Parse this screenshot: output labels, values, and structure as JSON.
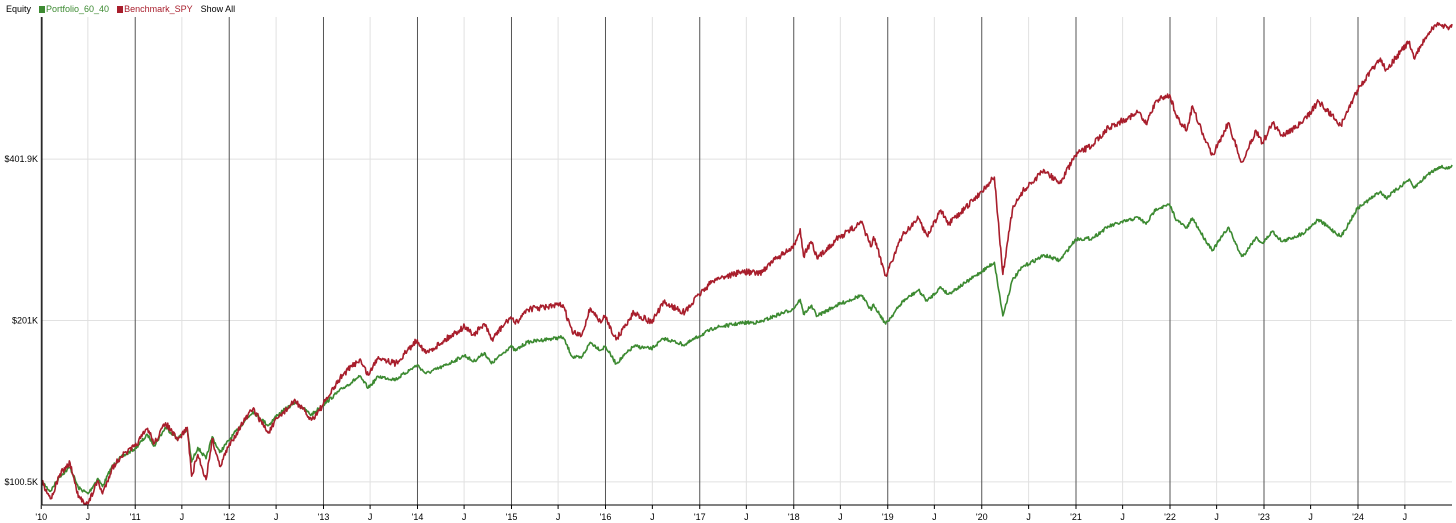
{
  "legend": {
    "title": "Equity",
    "show_all": "Show All"
  },
  "colors": {
    "portfolio": "#3c8a31",
    "benchmark": "#a81e2c",
    "year_grid": "#555555",
    "minor_grid": "#e1e1e1",
    "axis": "#000000"
  },
  "chart_data": {
    "type": "line",
    "title": "Equity",
    "xlabel": "",
    "ylabel": "",
    "scale": "log",
    "xlim": [
      "2010-01-04",
      "2024-12-31"
    ],
    "ylim": [
      91000,
      740000
    ],
    "grid": true,
    "legend_position": "top-left",
    "y_ticks": [
      {
        "value": 100500,
        "label": "$100.5K"
      },
      {
        "value": 201000,
        "label": "$201K"
      },
      {
        "value": 401900,
        "label": "$401.9K"
      }
    ],
    "x_ticks": [
      {
        "date": "2010-01-01",
        "label": "'10",
        "major": true
      },
      {
        "date": "2010-07-01",
        "label": "J",
        "major": false
      },
      {
        "date": "2011-01-01",
        "label": "'11",
        "major": true
      },
      {
        "date": "2011-07-01",
        "label": "J",
        "major": false
      },
      {
        "date": "2012-01-01",
        "label": "'12",
        "major": true
      },
      {
        "date": "2012-07-01",
        "label": "J",
        "major": false
      },
      {
        "date": "2013-01-01",
        "label": "'13",
        "major": true
      },
      {
        "date": "2013-07-01",
        "label": "J",
        "major": false
      },
      {
        "date": "2014-01-01",
        "label": "'14",
        "major": true
      },
      {
        "date": "2014-07-01",
        "label": "J",
        "major": false
      },
      {
        "date": "2015-01-01",
        "label": "'15",
        "major": true
      },
      {
        "date": "2015-07-01",
        "label": "J",
        "major": false
      },
      {
        "date": "2016-01-01",
        "label": "'16",
        "major": true
      },
      {
        "date": "2016-07-01",
        "label": "J",
        "major": false
      },
      {
        "date": "2017-01-01",
        "label": "'17",
        "major": true
      },
      {
        "date": "2017-07-01",
        "label": "J",
        "major": false
      },
      {
        "date": "2018-01-01",
        "label": "'18",
        "major": true
      },
      {
        "date": "2018-07-01",
        "label": "J",
        "major": false
      },
      {
        "date": "2019-01-01",
        "label": "'19",
        "major": true
      },
      {
        "date": "2019-07-01",
        "label": "J",
        "major": false
      },
      {
        "date": "2020-01-01",
        "label": "'20",
        "major": true
      },
      {
        "date": "2020-07-01",
        "label": "J",
        "major": false
      },
      {
        "date": "2021-01-01",
        "label": "'21",
        "major": true
      },
      {
        "date": "2021-07-01",
        "label": "J",
        "major": false
      },
      {
        "date": "2022-01-01",
        "label": "'22",
        "major": true
      },
      {
        "date": "2022-07-01",
        "label": "J",
        "major": false
      },
      {
        "date": "2023-01-01",
        "label": "'23",
        "major": true
      },
      {
        "date": "2023-07-01",
        "label": "J",
        "major": false
      },
      {
        "date": "2024-01-01",
        "label": "'24",
        "major": true
      },
      {
        "date": "2024-07-01",
        "label": "J",
        "major": false
      }
    ],
    "series": [
      {
        "name": "Portfolio_60_40",
        "color": "#3c8a31",
        "points": [
          [
            "2010-01-04",
            100500
          ],
          [
            "2010-02-05",
            96500
          ],
          [
            "2010-03-15",
            103000
          ],
          [
            "2010-04-23",
            107000
          ],
          [
            "2010-05-25",
            98000
          ],
          [
            "2010-07-02",
            95500
          ],
          [
            "2010-08-09",
            102000
          ],
          [
            "2010-08-27",
            98500
          ],
          [
            "2010-10-01",
            107000
          ],
          [
            "2010-11-05",
            111500
          ],
          [
            "2010-12-31",
            116000
          ],
          [
            "2011-02-18",
            123000
          ],
          [
            "2011-03-16",
            117500
          ],
          [
            "2011-04-29",
            127000
          ],
          [
            "2011-06-15",
            121000
          ],
          [
            "2011-07-22",
            126000
          ],
          [
            "2011-08-08",
            109500
          ],
          [
            "2011-09-01",
            116500
          ],
          [
            "2011-10-03",
            111000
          ],
          [
            "2011-10-27",
            122000
          ],
          [
            "2011-11-25",
            114000
          ],
          [
            "2011-12-30",
            120000
          ],
          [
            "2012-02-15",
            128000
          ],
          [
            "2012-04-02",
            136000
          ],
          [
            "2012-06-01",
            128000
          ],
          [
            "2012-07-06",
            134000
          ],
          [
            "2012-09-14",
            141500
          ],
          [
            "2012-11-15",
            134000
          ],
          [
            "2012-12-31",
            140000
          ],
          [
            "2013-03-15",
            150000
          ],
          [
            "2013-05-21",
            158000
          ],
          [
            "2013-06-24",
            150500
          ],
          [
            "2013-08-02",
            158000
          ],
          [
            "2013-10-08",
            156000
          ],
          [
            "2013-12-31",
            166000
          ],
          [
            "2014-02-03",
            160000
          ],
          [
            "2014-04-11",
            165000
          ],
          [
            "2014-07-03",
            173000
          ],
          [
            "2014-08-07",
            168500
          ],
          [
            "2014-09-18",
            175000
          ],
          [
            "2014-10-15",
            167000
          ],
          [
            "2014-12-29",
            180000
          ],
          [
            "2015-01-16",
            176500
          ],
          [
            "2015-03-02",
            183000
          ],
          [
            "2015-05-20",
            185500
          ],
          [
            "2015-07-20",
            187000
          ],
          [
            "2015-08-25",
            172000
          ],
          [
            "2015-09-29",
            171000
          ],
          [
            "2015-11-03",
            183000
          ],
          [
            "2015-12-14",
            177000
          ],
          [
            "2015-12-31",
            180000
          ],
          [
            "2016-02-11",
            167000
          ],
          [
            "2016-04-20",
            180000
          ],
          [
            "2016-06-27",
            178000
          ],
          [
            "2016-08-15",
            186000
          ],
          [
            "2016-11-04",
            181000
          ],
          [
            "2016-12-30",
            188000
          ],
          [
            "2017-03-01",
            195000
          ],
          [
            "2017-06-19",
            199000
          ],
          [
            "2017-08-21",
            199500
          ],
          [
            "2017-10-31",
            206000
          ],
          [
            "2017-12-29",
            211000
          ],
          [
            "2018-01-26",
            220000
          ],
          [
            "2018-02-08",
            206500
          ],
          [
            "2018-03-09",
            214000
          ],
          [
            "2018-04-02",
            205000
          ],
          [
            "2018-06-12",
            214000
          ],
          [
            "2018-09-20",
            224000
          ],
          [
            "2018-10-29",
            210000
          ],
          [
            "2018-11-07",
            215500
          ],
          [
            "2018-12-24",
            198000
          ],
          [
            "2019-02-28",
            218000
          ],
          [
            "2019-04-30",
            229000
          ],
          [
            "2019-06-03",
            218500
          ],
          [
            "2019-07-26",
            232000
          ],
          [
            "2019-08-23",
            225000
          ],
          [
            "2019-10-28",
            236000
          ],
          [
            "2019-12-31",
            248000
          ],
          [
            "2020-02-19",
            258000
          ],
          [
            "2020-03-23",
            205000
          ],
          [
            "2020-04-29",
            239000
          ],
          [
            "2020-06-08",
            253000
          ],
          [
            "2020-08-31",
            266000
          ],
          [
            "2020-10-30",
            260000
          ],
          [
            "2020-12-31",
            285000
          ],
          [
            "2021-03-04",
            286000
          ],
          [
            "2021-05-07",
            301000
          ],
          [
            "2021-08-31",
            313000
          ],
          [
            "2021-09-30",
            304000
          ],
          [
            "2021-11-08",
            325000
          ],
          [
            "2021-12-31",
            330000
          ],
          [
            "2022-01-27",
            309000
          ],
          [
            "2022-03-08",
            299000
          ],
          [
            "2022-03-29",
            312000
          ],
          [
            "2022-05-20",
            283000
          ],
          [
            "2022-06-16",
            272000
          ],
          [
            "2022-08-16",
            300000
          ],
          [
            "2022-09-30",
            268000
          ],
          [
            "2022-10-12",
            265000
          ],
          [
            "2022-11-30",
            287000
          ],
          [
            "2022-12-28",
            280000
          ],
          [
            "2023-02-02",
            295000
          ],
          [
            "2023-03-13",
            282000
          ],
          [
            "2023-05-31",
            292000
          ],
          [
            "2023-07-31",
            310000
          ],
          [
            "2023-10-27",
            288000
          ],
          [
            "2023-12-29",
            325000
          ],
          [
            "2024-03-28",
            350000
          ],
          [
            "2024-04-19",
            340000
          ],
          [
            "2024-07-16",
            368000
          ],
          [
            "2024-08-05",
            355000
          ],
          [
            "2024-09-30",
            377000
          ],
          [
            "2024-11-11",
            389000
          ],
          [
            "2024-12-20",
            386000
          ],
          [
            "2024-12-31",
            392000
          ]
        ]
      },
      {
        "name": "Benchmark_SPY",
        "color": "#a81e2c",
        "points": [
          [
            "2010-01-04",
            100500
          ],
          [
            "2010-02-08",
            93500
          ],
          [
            "2010-03-15",
            104000
          ],
          [
            "2010-04-23",
            109000
          ],
          [
            "2010-05-25",
            94000
          ],
          [
            "2010-07-02",
            91500
          ],
          [
            "2010-08-09",
            101000
          ],
          [
            "2010-08-27",
            95500
          ],
          [
            "2010-10-01",
            106000
          ],
          [
            "2010-11-05",
            112000
          ],
          [
            "2010-12-31",
            117000
          ],
          [
            "2011-02-18",
            126500
          ],
          [
            "2011-03-16",
            118500
          ],
          [
            "2011-04-29",
            129500
          ],
          [
            "2011-06-15",
            120000
          ],
          [
            "2011-07-22",
            127000
          ],
          [
            "2011-08-08",
            103000
          ],
          [
            "2011-09-01",
            113000
          ],
          [
            "2011-10-03",
            101500
          ],
          [
            "2011-10-27",
            121000
          ],
          [
            "2011-11-25",
            107500
          ],
          [
            "2011-12-30",
            117000
          ],
          [
            "2012-02-15",
            128000
          ],
          [
            "2012-04-02",
            137500
          ],
          [
            "2012-06-01",
            124000
          ],
          [
            "2012-07-06",
            132000
          ],
          [
            "2012-09-14",
            142500
          ],
          [
            "2012-11-15",
            131000
          ],
          [
            "2012-12-31",
            140000
          ],
          [
            "2013-03-15",
            159000
          ],
          [
            "2013-05-21",
            170000
          ],
          [
            "2013-06-24",
            159000
          ],
          [
            "2013-08-02",
            172000
          ],
          [
            "2013-10-08",
            167000
          ],
          [
            "2013-12-31",
            185000
          ],
          [
            "2014-02-03",
            174500
          ],
          [
            "2014-04-11",
            184000
          ],
          [
            "2014-07-03",
            196000
          ],
          [
            "2014-08-07",
            189000
          ],
          [
            "2014-09-18",
            198000
          ],
          [
            "2014-10-15",
            185000
          ],
          [
            "2014-12-29",
            204000
          ],
          [
            "2015-01-16",
            198000
          ],
          [
            "2015-03-02",
            211000
          ],
          [
            "2015-05-20",
            213000
          ],
          [
            "2015-07-20",
            215000
          ],
          [
            "2015-08-25",
            191000
          ],
          [
            "2015-09-29",
            188000
          ],
          [
            "2015-11-03",
            212000
          ],
          [
            "2015-12-14",
            199000
          ],
          [
            "2015-12-31",
            205000
          ],
          [
            "2016-02-11",
            185000
          ],
          [
            "2016-04-20",
            208000
          ],
          [
            "2016-06-27",
            199500
          ],
          [
            "2016-08-15",
            217000
          ],
          [
            "2016-11-04",
            208000
          ],
          [
            "2016-12-30",
            225000
          ],
          [
            "2017-03-01",
            240000
          ],
          [
            "2017-06-19",
            248000
          ],
          [
            "2017-08-21",
            246000
          ],
          [
            "2017-10-31",
            264000
          ],
          [
            "2017-12-29",
            274000
          ],
          [
            "2018-01-26",
            298000
          ],
          [
            "2018-02-08",
            265000
          ],
          [
            "2018-03-09",
            282000
          ],
          [
            "2018-04-02",
            262000
          ],
          [
            "2018-06-12",
            284000
          ],
          [
            "2018-09-20",
            306000
          ],
          [
            "2018-10-29",
            276000
          ],
          [
            "2018-11-07",
            288000
          ],
          [
            "2018-12-24",
            244000
          ],
          [
            "2019-02-28",
            290000
          ],
          [
            "2019-04-30",
            312000
          ],
          [
            "2019-06-03",
            289000
          ],
          [
            "2019-07-26",
            323000
          ],
          [
            "2019-08-23",
            303000
          ],
          [
            "2019-10-28",
            325000
          ],
          [
            "2019-12-31",
            350000
          ],
          [
            "2020-02-19",
            372000
          ],
          [
            "2020-03-23",
            245000
          ],
          [
            "2020-04-29",
            323000
          ],
          [
            "2020-06-08",
            350000
          ],
          [
            "2020-08-31",
            383000
          ],
          [
            "2020-10-30",
            362000
          ],
          [
            "2020-12-31",
            409000
          ],
          [
            "2021-03-04",
            427000
          ],
          [
            "2021-05-07",
            460000
          ],
          [
            "2021-08-31",
            491000
          ],
          [
            "2021-09-30",
            467000
          ],
          [
            "2021-11-08",
            517000
          ],
          [
            "2021-12-31",
            530000
          ],
          [
            "2022-01-27",
            480000
          ],
          [
            "2022-03-08",
            456000
          ],
          [
            "2022-03-29",
            505000
          ],
          [
            "2022-05-20",
            432000
          ],
          [
            "2022-06-16",
            410000
          ],
          [
            "2022-08-16",
            470000
          ],
          [
            "2022-09-30",
            402000
          ],
          [
            "2022-10-12",
            398000
          ],
          [
            "2022-11-30",
            455000
          ],
          [
            "2022-12-28",
            430000
          ],
          [
            "2023-02-02",
            470000
          ],
          [
            "2023-03-13",
            445000
          ],
          [
            "2023-05-31",
            470000
          ],
          [
            "2023-07-31",
            515000
          ],
          [
            "2023-10-27",
            465000
          ],
          [
            "2023-12-29",
            540000
          ],
          [
            "2024-03-28",
            620000
          ],
          [
            "2024-04-19",
            590000
          ],
          [
            "2024-07-16",
            665000
          ],
          [
            "2024-08-05",
            620000
          ],
          [
            "2024-09-30",
            690000
          ],
          [
            "2024-11-11",
            720000
          ],
          [
            "2024-12-20",
            705000
          ],
          [
            "2024-12-31",
            718000
          ]
        ]
      }
    ]
  }
}
